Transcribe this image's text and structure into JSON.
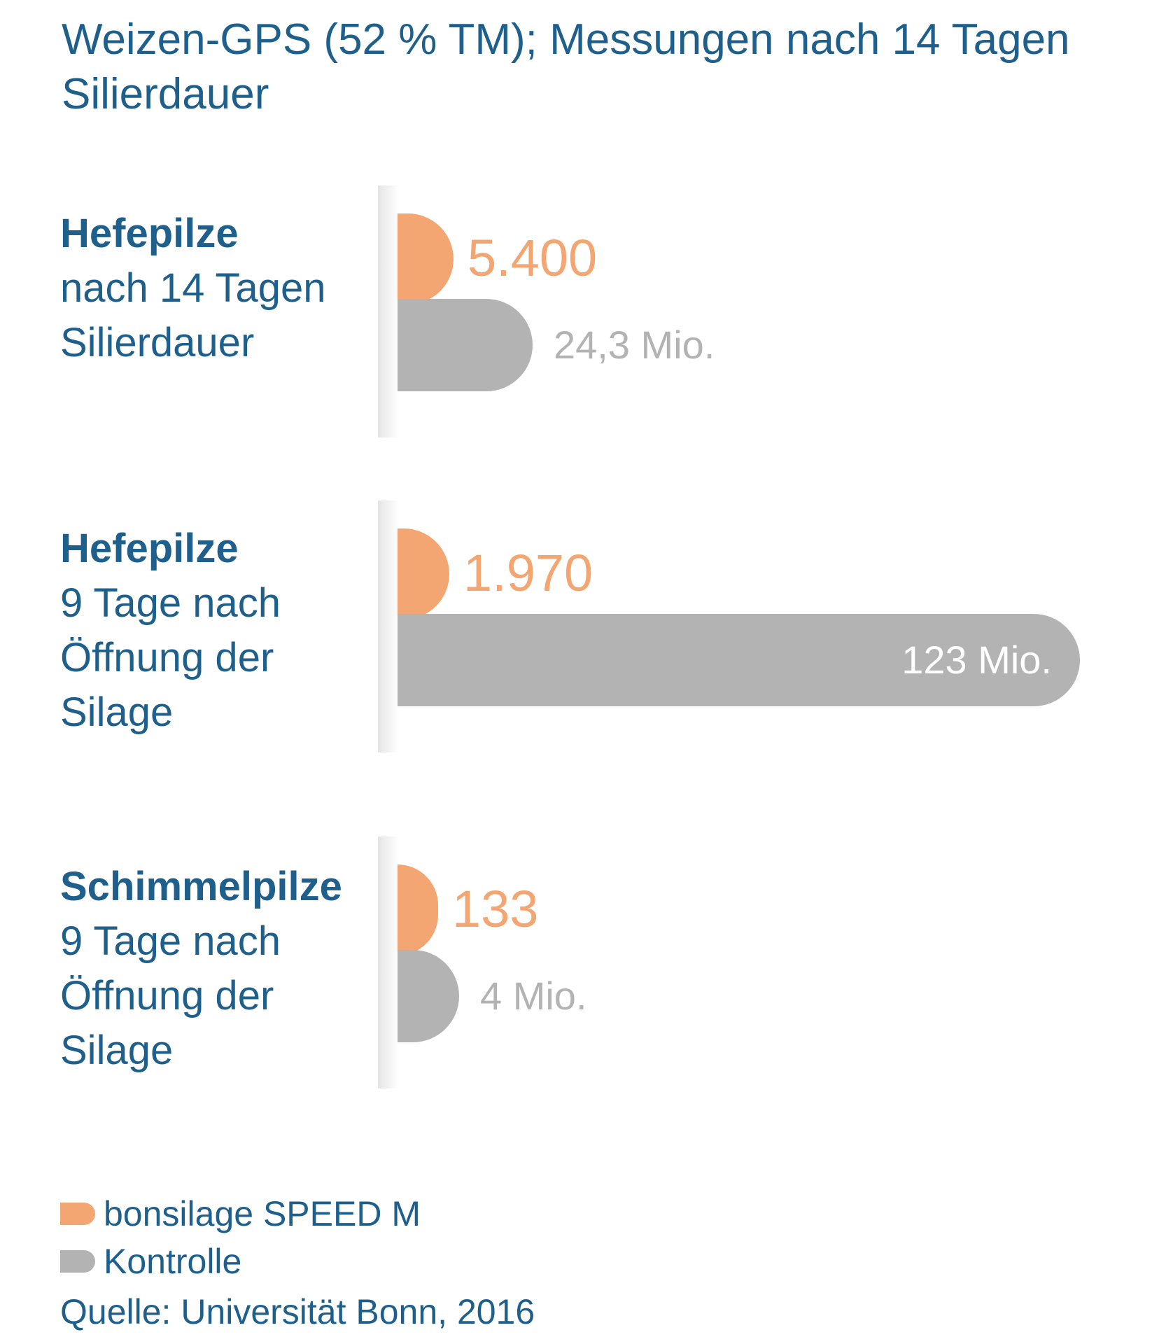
{
  "colors": {
    "speed": "#f4a672",
    "control": "#b3b3b3",
    "text": "#1f5f8b",
    "control_label_inside": "#ffffff"
  },
  "chart_data": {
    "type": "bar",
    "orientation": "horizontal",
    "title": "Weizen-GPS (52 % TM); Messungen nach 14 Tagen Silierdauer",
    "categories": [
      {
        "bold": "Hefepilze",
        "sub": "nach 14 Tagen\nSilierdauer"
      },
      {
        "bold": "Hefepilze",
        "sub": "9 Tage nach\nÖffnung der\nSilage"
      },
      {
        "bold": "Schimmelpilze",
        "sub": "9 Tage nach\nÖffnung der\nSilage"
      }
    ],
    "series": [
      {
        "name": "bonsilage SPEED M",
        "values": [
          5400,
          1970,
          133
        ],
        "labels": [
          "5.400",
          "1.970",
          "133"
        ]
      },
      {
        "name": "Kontrolle",
        "values": [
          24300000,
          123000000,
          4000000
        ],
        "labels": [
          "24,3 Mio.",
          "123 Mio.",
          "4 Mio."
        ]
      }
    ],
    "legend_position": "bottom-left",
    "grid": false
  },
  "legend": {
    "speed_label": "bonsilage SPEED M",
    "control_label": "Kontrolle"
  },
  "source": "Quelle: Universität Bonn, 2016"
}
